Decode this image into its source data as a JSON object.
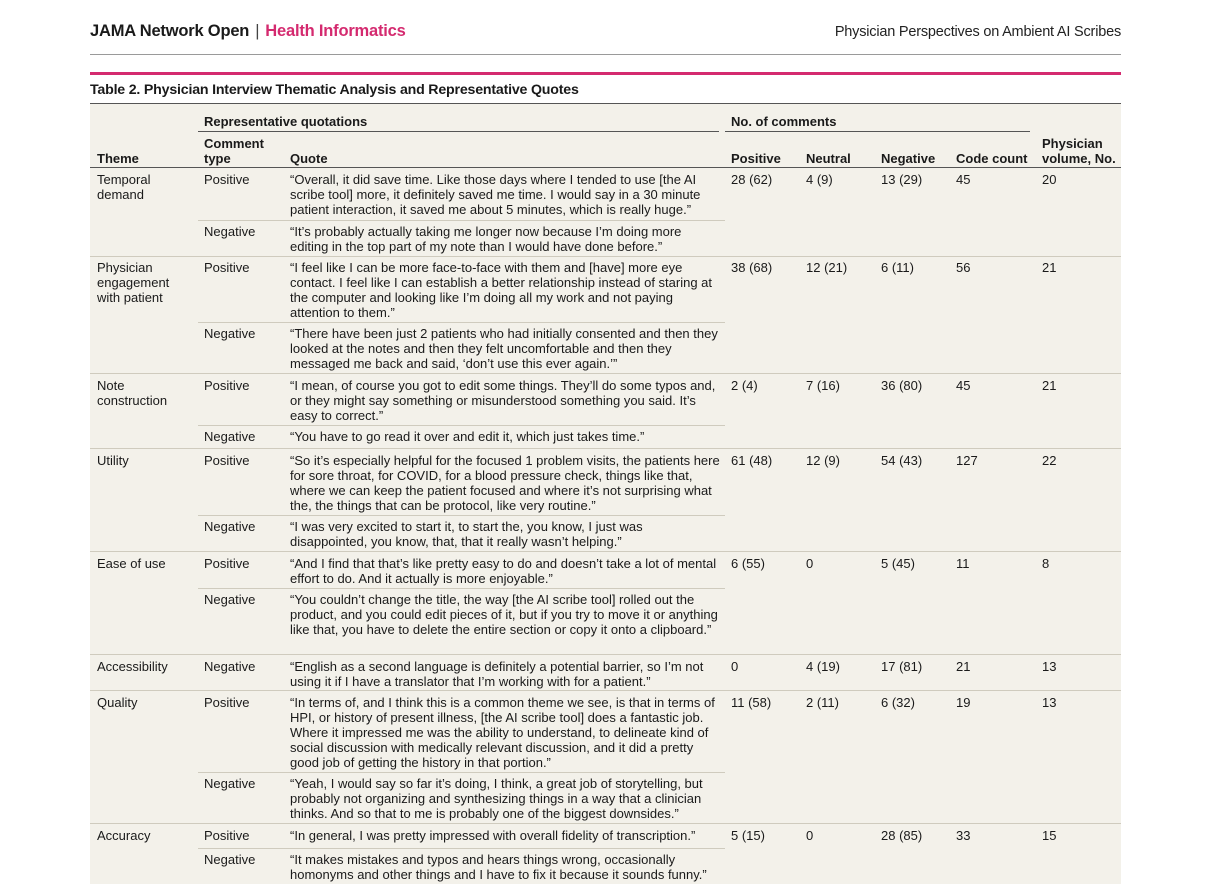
{
  "header": {
    "journal": "JAMA Network Open",
    "separator": "|",
    "section": "Health Informatics",
    "running_title": "Physician Perspectives on Ambient AI Scribes"
  },
  "table": {
    "caption": "Table 2. Physician Interview Thematic Analysis and Representative Quotes",
    "group_headers": {
      "quotations": "Representative quotations",
      "comments": "No. of comments"
    },
    "headers": {
      "theme": "Theme",
      "comment_type": "Comment type",
      "quote": "Quote",
      "positive": "Positive",
      "neutral": "Neutral",
      "negative": "Negative",
      "code_count": "Code count",
      "physician_volume": "Physician volume, No."
    },
    "rows": [
      {
        "theme": "Temporal demand",
        "positive": "28 (62)",
        "neutral": "4 (9)",
        "negative": "13 (29)",
        "code_count": "45",
        "volume": "20",
        "quotes": [
          {
            "type": "Positive",
            "text": "“Overall, it did save time. Like those days where I tended to use [the AI scribe tool] more, it definitely saved me time. I would say in a 30 minute patient interaction, it saved me about 5 minutes, which is really huge.”"
          },
          {
            "type": "Negative",
            "text": "“It’s probably actually taking me longer now because I’m doing more editing in the top part of my note than I would have done before.”"
          }
        ]
      },
      {
        "theme": "Physician engagement with patient",
        "positive": "38 (68)",
        "neutral": "12 (21)",
        "negative": "6 (11)",
        "code_count": "56",
        "volume": "21",
        "quotes": [
          {
            "type": "Positive",
            "text": "“I feel like I can be more face-to-face with them and [have] more eye contact. I feel like I can establish a better relationship instead of staring at the computer and looking like I’m doing all my work and not paying attention to them.”"
          },
          {
            "type": "Negative",
            "text": "“There have been just 2 patients who had initially consented and then they looked at the notes and then they felt uncomfortable and then they messaged me back and said, ‘don’t use this ever again.’”"
          }
        ]
      },
      {
        "theme": "Note construction",
        "positive": "2 (4)",
        "neutral": "7 (16)",
        "negative": "36 (80)",
        "code_count": "45",
        "volume": "21",
        "quotes": [
          {
            "type": "Positive",
            "text": "“I mean, of course you got to edit some things. They’ll do some typos and, or they might say something or misunderstood something you said. It’s easy to correct.”"
          },
          {
            "type": "Negative",
            "text": "“You have to go read it over and edit it, which just takes time.”"
          }
        ]
      },
      {
        "theme": "Utility",
        "positive": "61 (48)",
        "neutral": "12 (9)",
        "negative": "54 (43)",
        "code_count": "127",
        "volume": "22",
        "quotes": [
          {
            "type": "Positive",
            "text": "“So it’s especially helpful for the focused 1 problem visits, the patients here for sore throat, for COVID, for a blood pressure check, things like that, where we can keep the patient focused and where it’s not surprising what the, the things that can be protocol, like very routine.”"
          },
          {
            "type": "Negative",
            "text": "“I was very excited to start it, to start the, you know, I just was disappointed, you know, that, that it really wasn’t helping.”"
          }
        ]
      },
      {
        "theme": "Ease of use",
        "positive": "6 (55)",
        "neutral": "0",
        "negative": "5 (45)",
        "code_count": "11",
        "volume": "8",
        "quotes": [
          {
            "type": "Positive",
            "text": "“And I find that that’s like pretty easy to do and doesn’t take a lot of mental effort to do. And it actually is more enjoyable.”"
          },
          {
            "type": "Negative",
            "text": "“You couldn’t change the title, the way [the AI scribe tool] rolled out the product, and you could edit pieces of it, but if you try to move it or anything like that, you have to delete the entire section or copy it onto a clipboard.”"
          }
        ]
      },
      {
        "theme": "Accessibility",
        "positive": "0",
        "neutral": "4 (19)",
        "negative": "17 (81)",
        "code_count": "21",
        "volume": "13",
        "quotes": [
          {
            "type": "Negative",
            "text": "“English as a second language is definitely a potential barrier, so I’m not using it if I have a translator that I’m working with for a patient.”"
          }
        ]
      },
      {
        "theme": "Quality",
        "positive": "11 (58)",
        "neutral": "2 (11)",
        "negative": "6 (32)",
        "code_count": "19",
        "volume": "13",
        "quotes": [
          {
            "type": "Positive",
            "text": "“In terms of, and I think this is a common theme we see, is that in terms of HPI, or history of present illness, [the AI scribe tool] does a fantastic job. Where it impressed me was the ability to understand, to delineate kind of social discussion with medically relevant discussion, and it did a pretty good job of getting the history in that portion.”"
          },
          {
            "type": "Negative",
            "text": "“Yeah, I would say so far it’s doing, I think, a great job of storytelling, but probably not organizing and synthesizing things in a way that a clinician thinks. And so that to me is probably one of the biggest downsides.”"
          }
        ]
      },
      {
        "theme": "Accuracy",
        "positive": "5 (15)",
        "neutral": "0",
        "negative": "28 (85)",
        "code_count": "33",
        "volume": "15",
        "quotes": [
          {
            "type": "Positive",
            "text": "“In general, I was pretty impressed with overall fidelity of transcription.”"
          },
          {
            "type": "Negative",
            "text": "“It makes mistakes and typos and hears things wrong, occasionally homonyms and other things and I have to fix it because it sounds funny.”"
          }
        ]
      }
    ]
  }
}
